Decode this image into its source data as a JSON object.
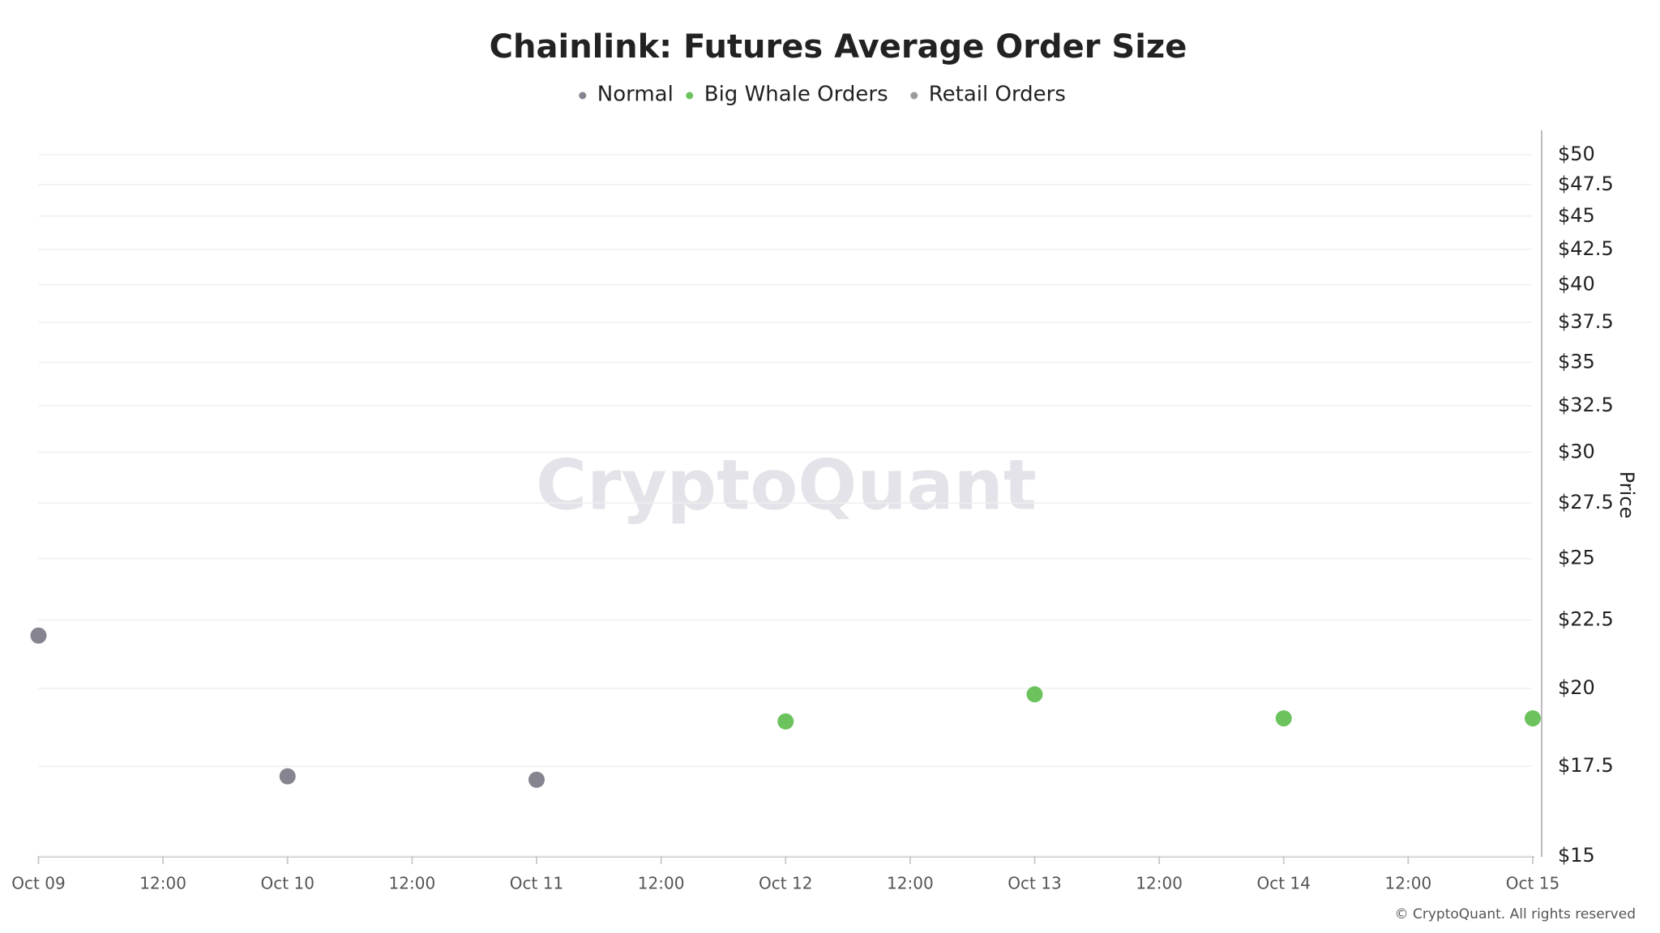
{
  "chart_data": {
    "type": "scatter",
    "title": "Chainlink: Futures Average Order Size",
    "y_label": "Price",
    "watermark": "CryptoQuant",
    "copyright": "© CryptoQuant. All rights reserved",
    "log_y": true,
    "grid": true,
    "legend": "top",
    "x": [
      "Oct 09",
      "Oct 10",
      "Oct 11",
      "Oct 12",
      "Oct 13",
      "Oct 14",
      "Oct 15"
    ],
    "xtick_labels": [
      "Oct 09",
      "12:00",
      "Oct 10",
      "12:00",
      "Oct 11",
      "12:00",
      "Oct 12",
      "12:00",
      "Oct 13",
      "12:00",
      "Oct 14",
      "12:00",
      "Oct 15"
    ],
    "series": [
      {
        "name": "Normal",
        "color": "#86848e",
        "values": [
          21.9,
          17.2,
          17.1,
          null,
          null,
          null,
          null
        ]
      },
      {
        "name": "Big Whale Orders",
        "color": "#6cc35e",
        "values": [
          null,
          null,
          null,
          18.9,
          19.8,
          19.0,
          19.0
        ]
      },
      {
        "name": "Retail Orders",
        "color": "#9a9a9a",
        "values": [
          null,
          null,
          null,
          null,
          null,
          null,
          null
        ]
      }
    ],
    "ylim": [
      15,
      50
    ],
    "yticks": [
      {
        "value": 15,
        "label": "$15"
      },
      {
        "value": 17.5,
        "label": "$17.5"
      },
      {
        "value": 20,
        "label": "$20"
      },
      {
        "value": 22.5,
        "label": "$22.5"
      },
      {
        "value": 25,
        "label": "$25"
      },
      {
        "value": 27.5,
        "label": "$27.5"
      },
      {
        "value": 30,
        "label": "$30"
      },
      {
        "value": 32.5,
        "label": "$32.5"
      },
      {
        "value": 35,
        "label": "$35"
      },
      {
        "value": 37.5,
        "label": "$37.5"
      },
      {
        "value": 40,
        "label": "$40"
      },
      {
        "value": 42.5,
        "label": "$42.5"
      },
      {
        "value": 45,
        "label": "$45"
      },
      {
        "value": 47.5,
        "label": "$47.5"
      },
      {
        "value": 50,
        "label": "$50"
      }
    ]
  }
}
